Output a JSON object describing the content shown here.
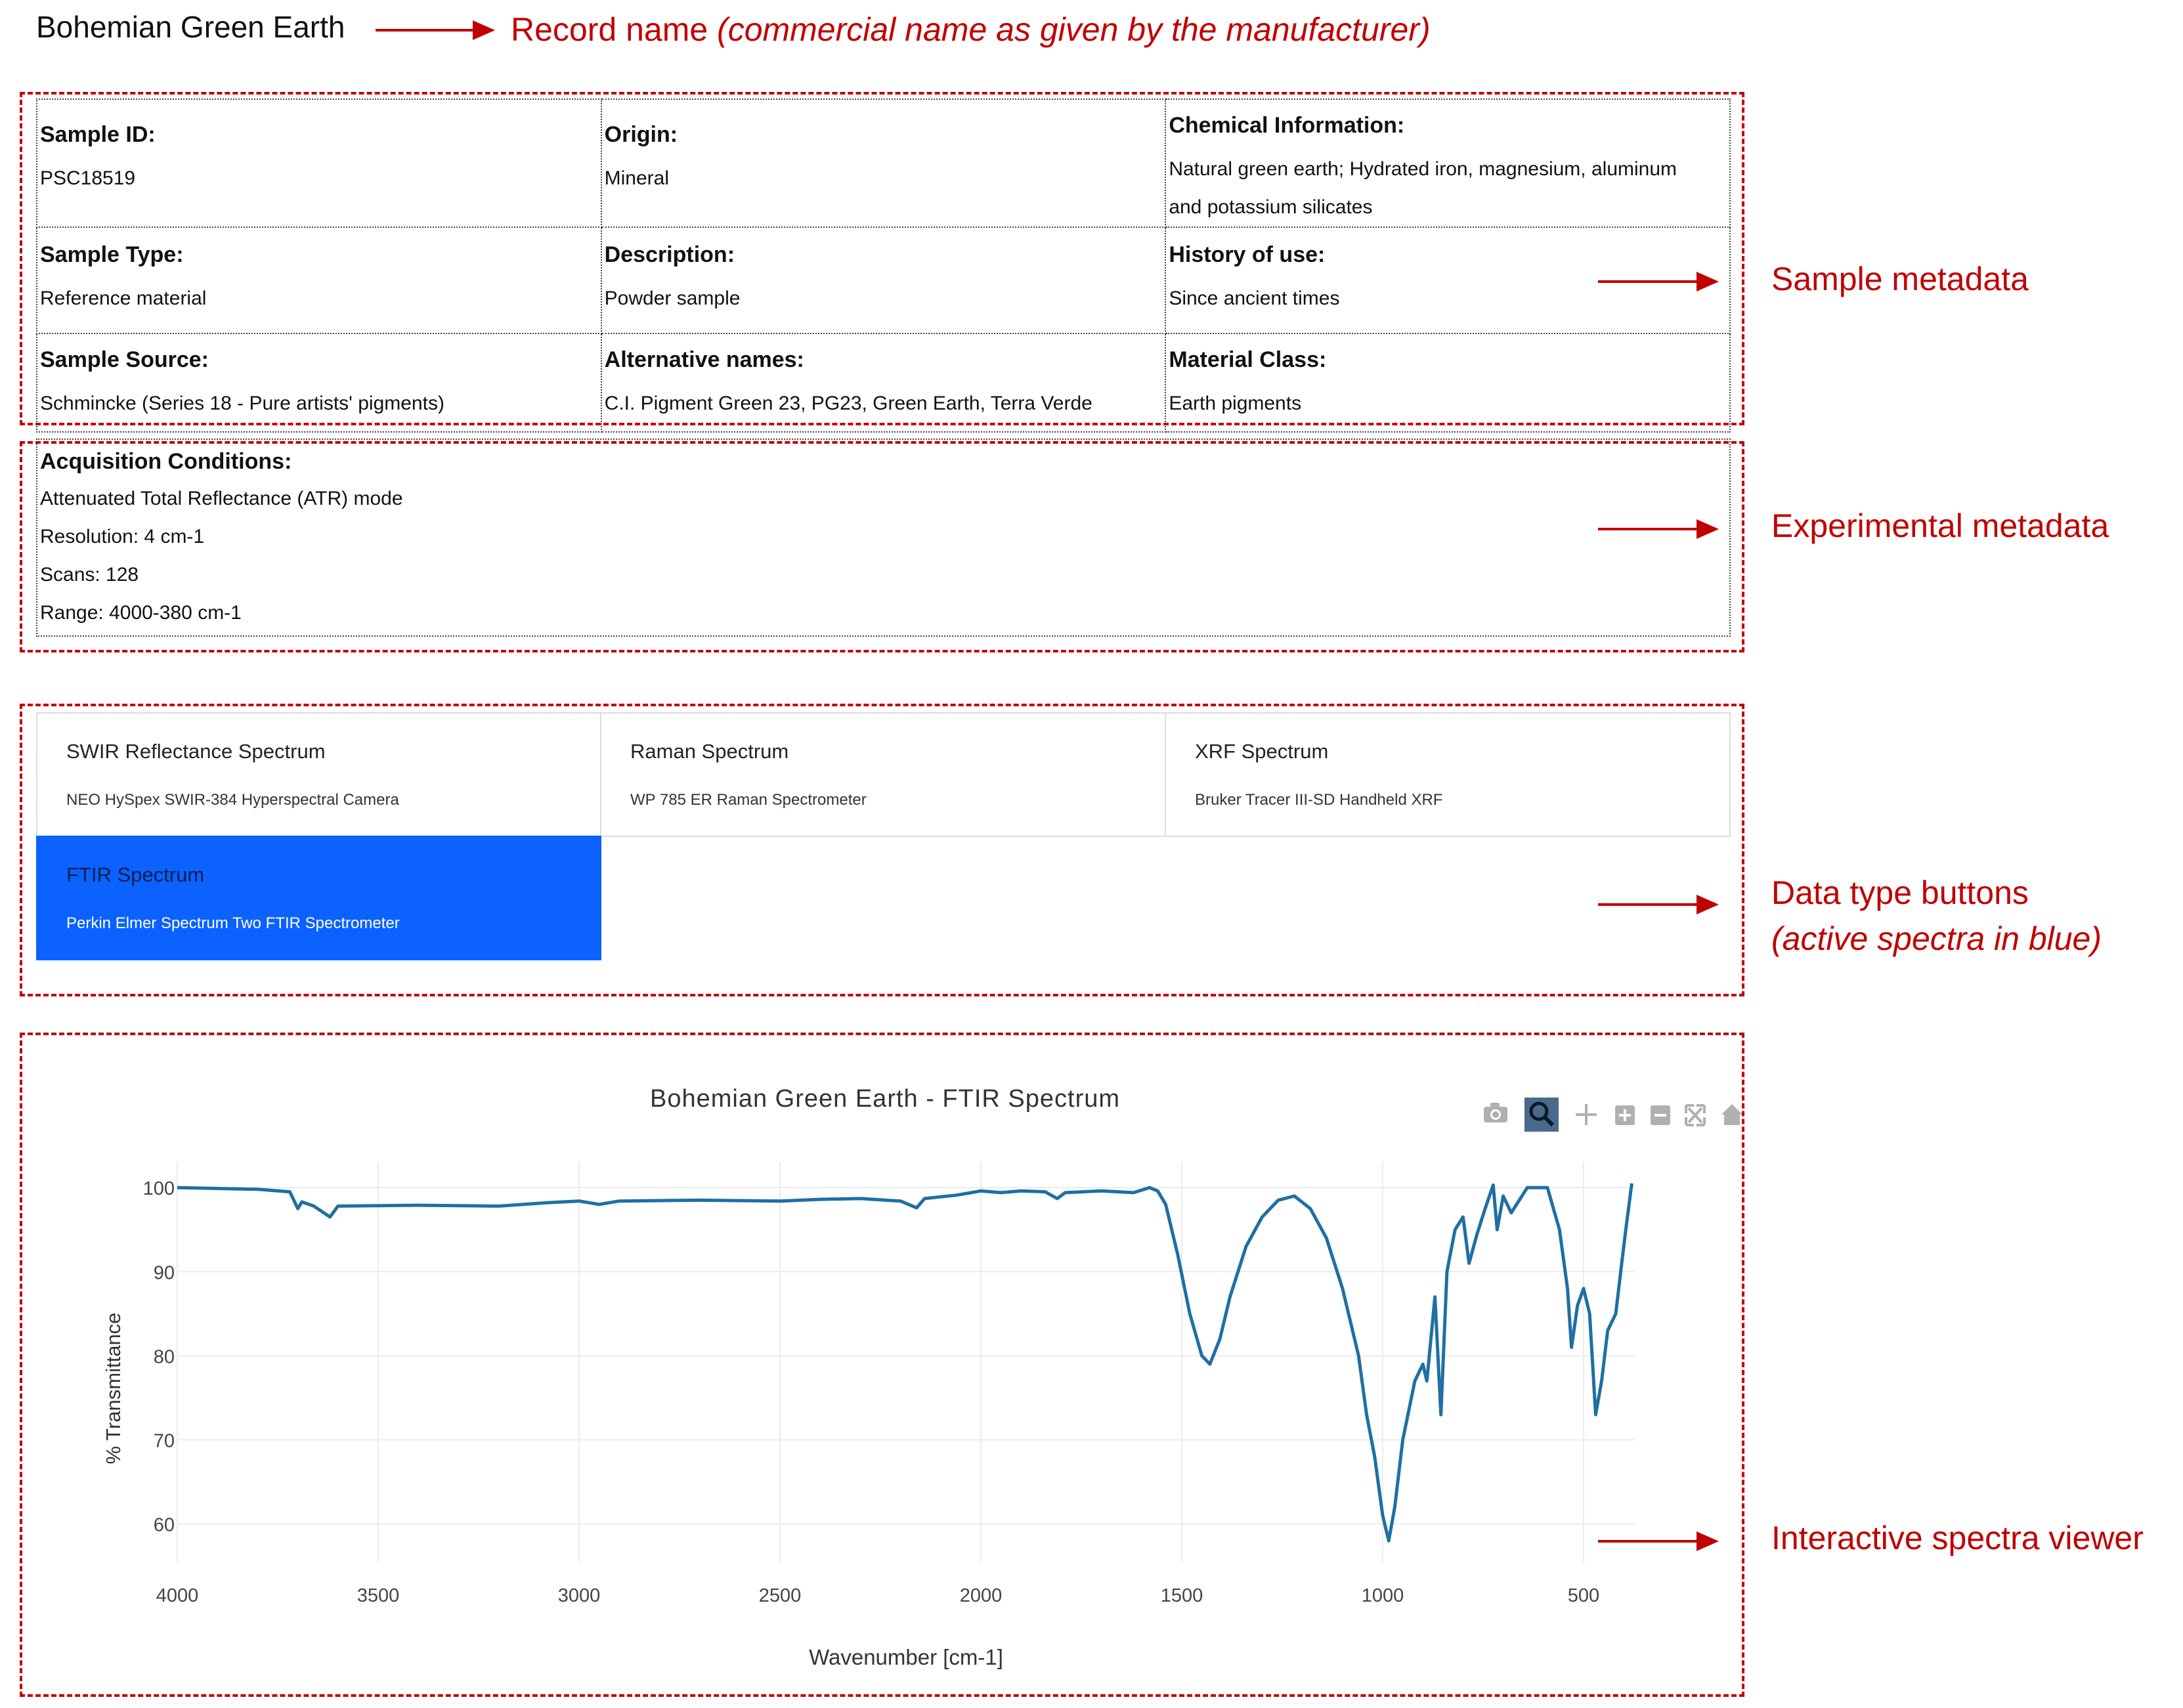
{
  "record": {
    "name": "Bohemian Green Earth",
    "annotation_main": "Record name ",
    "annotation_italic": "(commercial name as given by the manufacturer)"
  },
  "metadata": {
    "sample_id_label": "Sample ID:",
    "sample_id": "PSC18519",
    "origin_label": "Origin:",
    "origin": "Mineral",
    "chem_label": "Chemical Information:",
    "chem_line1": "Natural green earth; Hydrated iron, magnesium, aluminum",
    "chem_line2": "and potassium silicates",
    "type_label": "Sample Type:",
    "type": "Reference material",
    "desc_label": "Description:",
    "desc": "Powder sample",
    "history_label": "History of use:",
    "history": "Since ancient times",
    "source_label": "Sample Source:",
    "source": "Schmincke (Series 18 - Pure artists' pigments)",
    "alt_label": "Alternative names:",
    "alt": "C.I. Pigment Green 23, PG23, Green Earth, Terra Verde",
    "class_label": "Material Class:",
    "class": "Earth pigments"
  },
  "acquisition": {
    "label": "Acquisition Conditions:",
    "lines": [
      "Attenuated Total Reflectance (ATR) mode",
      "Resolution: 4 cm-1",
      "Scans: 128",
      "Range: 4000-380 cm-1"
    ]
  },
  "buttons": [
    {
      "title": "SWIR Reflectance Spectrum",
      "sub": "NEO HySpex SWIR-384 Hyperspectral Camera",
      "active": false
    },
    {
      "title": "Raman Spectrum",
      "sub": "WP 785 ER Raman Spectrometer",
      "active": false
    },
    {
      "title": "XRF Spectrum",
      "sub": "Bruker Tracer III-SD Handheld XRF",
      "active": false
    },
    {
      "title": "FTIR Spectrum",
      "sub": "Perkin Elmer Spectrum Two FTIR Spectrometer",
      "active": true
    }
  ],
  "annotations": {
    "sample_metadata": "Sample metadata",
    "experimental_metadata": "Experimental metadata",
    "data_type_buttons": "Data type buttons",
    "active_note": "(active spectra in blue)",
    "viewer": "Interactive spectra viewer"
  },
  "colors": {
    "active": "#0b62ff",
    "annotation": "#c00000",
    "line": "#1f6fa3"
  },
  "toolbar_icons": [
    "camera-icon",
    "zoom-icon",
    "pan-icon",
    "zoom-in-icon",
    "zoom-out-icon",
    "autoscale-icon",
    "home-icon"
  ],
  "chart_data": {
    "type": "line",
    "title": "Bohemian Green Earth - FTIR Spectrum",
    "xlabel": "Wavenumber [cm-1]",
    "ylabel": "% Transmittance",
    "xlim": [
      4000,
      380
    ],
    "ylim": [
      57,
      101.5
    ],
    "x_reversed": true,
    "xticks": [
      4000,
      3500,
      3000,
      2500,
      2000,
      1500,
      1000,
      500
    ],
    "yticks": [
      60,
      70,
      80,
      90,
      100
    ],
    "grid": true,
    "series": [
      {
        "points": [
          [
            4000,
            100
          ],
          [
            3800,
            99.8
          ],
          [
            3720,
            99.5
          ],
          [
            3700,
            97.5
          ],
          [
            3690,
            98.3
          ],
          [
            3660,
            97.8
          ],
          [
            3620,
            96.5
          ],
          [
            3600,
            97.8
          ],
          [
            3400,
            97.9
          ],
          [
            3200,
            97.8
          ],
          [
            3080,
            98.2
          ],
          [
            3000,
            98.4
          ],
          [
            2950,
            98.0
          ],
          [
            2900,
            98.4
          ],
          [
            2700,
            98.5
          ],
          [
            2500,
            98.4
          ],
          [
            2400,
            98.6
          ],
          [
            2300,
            98.7
          ],
          [
            2200,
            98.4
          ],
          [
            2160,
            97.6
          ],
          [
            2140,
            98.7
          ],
          [
            2060,
            99.1
          ],
          [
            2000,
            99.6
          ],
          [
            1950,
            99.4
          ],
          [
            1900,
            99.6
          ],
          [
            1840,
            99.5
          ],
          [
            1810,
            98.7
          ],
          [
            1790,
            99.4
          ],
          [
            1700,
            99.6
          ],
          [
            1620,
            99.4
          ],
          [
            1580,
            100
          ],
          [
            1560,
            99.6
          ],
          [
            1540,
            98
          ],
          [
            1510,
            92
          ],
          [
            1480,
            85
          ],
          [
            1450,
            80
          ],
          [
            1430,
            79
          ],
          [
            1405,
            82
          ],
          [
            1380,
            87
          ],
          [
            1340,
            93
          ],
          [
            1300,
            96.5
          ],
          [
            1260,
            98.5
          ],
          [
            1220,
            99
          ],
          [
            1180,
            97.5
          ],
          [
            1140,
            94
          ],
          [
            1100,
            88
          ],
          [
            1060,
            80
          ],
          [
            1040,
            73
          ],
          [
            1020,
            68
          ],
          [
            1000,
            61
          ],
          [
            985,
            58
          ],
          [
            970,
            62
          ],
          [
            950,
            70
          ],
          [
            920,
            77
          ],
          [
            900,
            79
          ],
          [
            890,
            77
          ],
          [
            870,
            87
          ],
          [
            855,
            73
          ],
          [
            840,
            90
          ],
          [
            820,
            95
          ],
          [
            800,
            96.5
          ],
          [
            785,
            91
          ],
          [
            765,
            94.5
          ],
          [
            745,
            97.5
          ],
          [
            725,
            100.3
          ],
          [
            715,
            95
          ],
          [
            700,
            99
          ],
          [
            680,
            97
          ],
          [
            640,
            100
          ],
          [
            590,
            100
          ],
          [
            560,
            95
          ],
          [
            540,
            88
          ],
          [
            530,
            81
          ],
          [
            515,
            86
          ],
          [
            500,
            88
          ],
          [
            485,
            85
          ],
          [
            470,
            73
          ],
          [
            455,
            77
          ],
          [
            440,
            83
          ],
          [
            420,
            85
          ],
          [
            405,
            91
          ],
          [
            395,
            95
          ],
          [
            380,
            100.5
          ]
        ]
      }
    ]
  }
}
